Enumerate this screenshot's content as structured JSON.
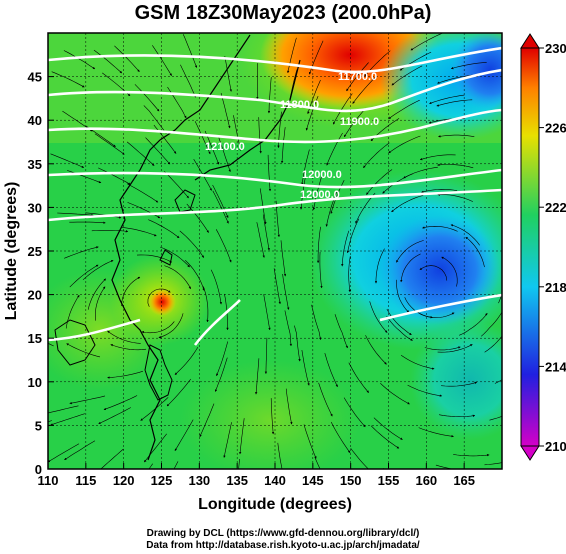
{
  "title": "GSM 18Z30May2023 (200.0hPa)",
  "map": {
    "xlabel": "Longitude (degrees)",
    "ylabel": "Latitude  (degrees)",
    "xlim": [
      110,
      170
    ],
    "ylim": [
      0,
      50
    ],
    "xticks": [
      110,
      115,
      120,
      125,
      130,
      135,
      140,
      145,
      150,
      155,
      160,
      165
    ],
    "yticks": [
      0,
      5,
      10,
      15,
      20,
      25,
      30,
      35,
      40,
      45
    ],
    "contour_labels": [
      "11700.0",
      "11800.0",
      "11900.0",
      "12000.0",
      "12000.0",
      "12100.0"
    ]
  },
  "colorbar": {
    "ticks": [
      210,
      214,
      218,
      222,
      226,
      230
    ],
    "range": [
      210,
      230
    ],
    "colors": [
      "#d400c8",
      "#2020e0",
      "#10c8f0",
      "#20d060",
      "#e8e000",
      "#ff8000",
      "#e00000"
    ]
  },
  "credits": {
    "line1": "Drawing by DCL (https://www.gfd-dennou.org/library/dcl/)",
    "line2": "Data from http://database.rish.kyoto-u.ac.jp/arch/jmadata/"
  }
}
